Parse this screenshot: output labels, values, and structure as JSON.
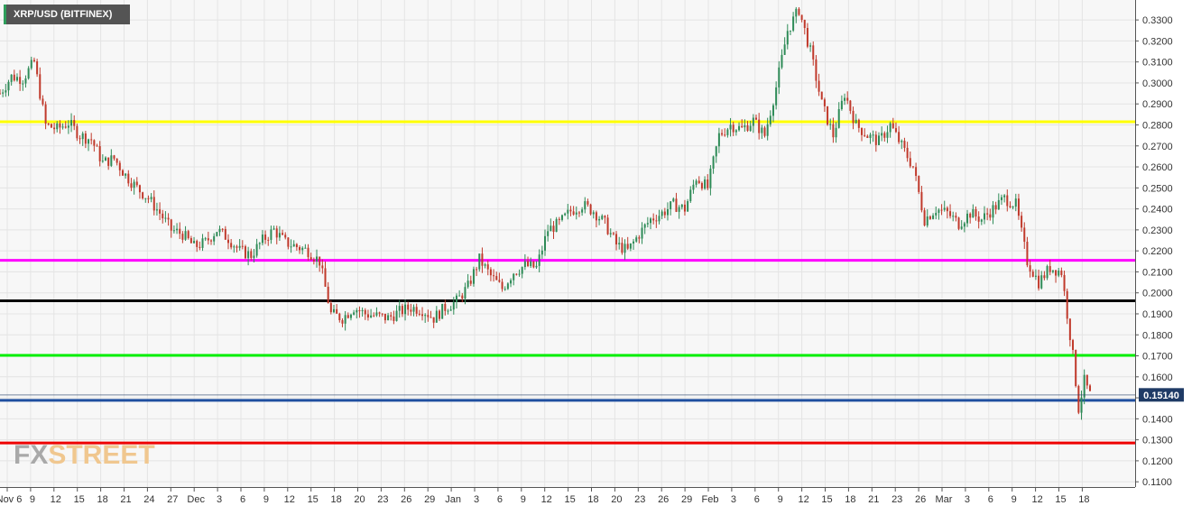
{
  "title": "XRP/USD (BITFINEX)",
  "logo": {
    "part1": "FX",
    "part2": "STREET"
  },
  "price_label": "0.15140",
  "colors": {
    "plot_bg": "#f7f7f7",
    "grid": "#e4e4e4",
    "up": "#2e8b57",
    "down": "#c0392b",
    "price_label_bg": "#1f3b66"
  },
  "chart_data": {
    "type": "candlestick",
    "title": "XRP/USD (BITFINEX)",
    "y_ticks": [
      "0.1100",
      "0.1200",
      "0.1300",
      "0.1400",
      "0.1500",
      "0.1600",
      "0.1700",
      "0.1800",
      "0.1900",
      "0.2000",
      "0.2100",
      "0.2200",
      "0.2300",
      "0.2400",
      "0.2500",
      "0.2600",
      "0.2700",
      "0.2800",
      "0.2900",
      "0.3000",
      "0.3100",
      "0.3200",
      "0.3300"
    ],
    "ylim": [
      0.1075,
      0.3395
    ],
    "x_ticks": [
      "Nov 6",
      "9",
      "12",
      "15",
      "18",
      "21",
      "24",
      "27",
      "Dec",
      "3",
      "6",
      "9",
      "12",
      "15",
      "18",
      "20",
      "23",
      "26",
      "29",
      "Jan",
      "3",
      "6",
      "9",
      "12",
      "15",
      "18",
      "20",
      "23",
      "26",
      "29",
      "Feb",
      "3",
      "6",
      "9",
      "12",
      "15",
      "18",
      "21",
      "23",
      "26",
      "Mar",
      "3",
      "6",
      "9",
      "12",
      "15",
      "18"
    ],
    "levels": [
      {
        "price": 0.2815,
        "color": "#ffff00"
      },
      {
        "price": 0.2155,
        "color": "#ff00ff"
      },
      {
        "price": 0.1962,
        "color": "#000000"
      },
      {
        "price": 0.1702,
        "color": "#00ee00"
      },
      {
        "price": 0.1488,
        "color": "#1f4fa0"
      },
      {
        "price": 0.1285,
        "color": "#ee0000"
      }
    ],
    "last_price": 0.1514,
    "series": [
      {
        "x": 0.0,
        "close": 0.295
      },
      {
        "x": 2.0,
        "close": 0.303
      },
      {
        "x": 4.0,
        "close": 0.302
      },
      {
        "x": 6.0,
        "close": 0.31
      },
      {
        "x": 8.0,
        "close": 0.28
      },
      {
        "x": 10.0,
        "close": 0.278
      },
      {
        "x": 12.0,
        "close": 0.281
      },
      {
        "x": 14.0,
        "close": 0.275
      },
      {
        "x": 16.0,
        "close": 0.273
      },
      {
        "x": 18.0,
        "close": 0.262
      },
      {
        "x": 20.0,
        "close": 0.264
      },
      {
        "x": 22.0,
        "close": 0.256
      },
      {
        "x": 24.0,
        "close": 0.25
      },
      {
        "x": 26.0,
        "close": 0.245
      },
      {
        "x": 28.0,
        "close": 0.238
      },
      {
        "x": 30.0,
        "close": 0.23
      },
      {
        "x": 32.0,
        "close": 0.228
      },
      {
        "x": 34.0,
        "close": 0.222
      },
      {
        "x": 36.0,
        "close": 0.224
      },
      {
        "x": 38.0,
        "close": 0.23
      },
      {
        "x": 40.0,
        "close": 0.226
      },
      {
        "x": 42.0,
        "close": 0.22
      },
      {
        "x": 44.0,
        "close": 0.218
      },
      {
        "x": 46.0,
        "close": 0.225
      },
      {
        "x": 48.0,
        "close": 0.23
      },
      {
        "x": 50.0,
        "close": 0.224
      },
      {
        "x": 52.0,
        "close": 0.222
      },
      {
        "x": 54.0,
        "close": 0.22
      },
      {
        "x": 56.0,
        "close": 0.215
      },
      {
        "x": 58.0,
        "close": 0.19
      },
      {
        "x": 60.0,
        "close": 0.188
      },
      {
        "x": 62.0,
        "close": 0.193
      },
      {
        "x": 64.0,
        "close": 0.19
      },
      {
        "x": 66.0,
        "close": 0.189
      },
      {
        "x": 68.0,
        "close": 0.188
      },
      {
        "x": 70.0,
        "close": 0.191
      },
      {
        "x": 72.0,
        "close": 0.193
      },
      {
        "x": 74.0,
        "close": 0.192
      },
      {
        "x": 76.0,
        "close": 0.188
      },
      {
        "x": 78.0,
        "close": 0.193
      },
      {
        "x": 80.0,
        "close": 0.196
      },
      {
        "x": 82.0,
        "close": 0.203
      },
      {
        "x": 84.0,
        "close": 0.216
      },
      {
        "x": 86.0,
        "close": 0.208
      },
      {
        "x": 88.0,
        "close": 0.202
      },
      {
        "x": 90.0,
        "close": 0.21
      },
      {
        "x": 92.0,
        "close": 0.213
      },
      {
        "x": 94.0,
        "close": 0.212
      },
      {
        "x": 96.0,
        "close": 0.23
      },
      {
        "x": 98.0,
        "close": 0.233
      },
      {
        "x": 100.0,
        "close": 0.239
      },
      {
        "x": 102.0,
        "close": 0.242
      },
      {
        "x": 104.0,
        "close": 0.239
      },
      {
        "x": 106.0,
        "close": 0.233
      },
      {
        "x": 108.0,
        "close": 0.223
      },
      {
        "x": 110.0,
        "close": 0.22
      },
      {
        "x": 112.0,
        "close": 0.228
      },
      {
        "x": 114.0,
        "close": 0.235
      },
      {
        "x": 116.0,
        "close": 0.238
      },
      {
        "x": 118.0,
        "close": 0.242
      },
      {
        "x": 120.0,
        "close": 0.24
      },
      {
        "x": 122.0,
        "close": 0.255
      },
      {
        "x": 124.0,
        "close": 0.25
      },
      {
        "x": 126.0,
        "close": 0.275
      },
      {
        "x": 128.0,
        "close": 0.28
      },
      {
        "x": 130.0,
        "close": 0.278
      },
      {
        "x": 132.0,
        "close": 0.282
      },
      {
        "x": 134.0,
        "close": 0.275
      },
      {
        "x": 136.0,
        "close": 0.298
      },
      {
        "x": 138.0,
        "close": 0.325
      },
      {
        "x": 140.0,
        "close": 0.335
      },
      {
        "x": 142.0,
        "close": 0.315
      },
      {
        "x": 144.0,
        "close": 0.29
      },
      {
        "x": 146.0,
        "close": 0.275
      },
      {
        "x": 148.0,
        "close": 0.295
      },
      {
        "x": 150.0,
        "close": 0.28
      },
      {
        "x": 152.0,
        "close": 0.275
      },
      {
        "x": 154.0,
        "close": 0.272
      },
      {
        "x": 156.0,
        "close": 0.28
      },
      {
        "x": 158.0,
        "close": 0.27
      },
      {
        "x": 160.0,
        "close": 0.26
      },
      {
        "x": 162.0,
        "close": 0.235
      },
      {
        "x": 164.0,
        "close": 0.24
      },
      {
        "x": 166.0,
        "close": 0.238
      },
      {
        "x": 168.0,
        "close": 0.233
      },
      {
        "x": 170.0,
        "close": 0.238
      },
      {
        "x": 172.0,
        "close": 0.235
      },
      {
        "x": 174.0,
        "close": 0.24
      },
      {
        "x": 176.0,
        "close": 0.245
      },
      {
        "x": 178.0,
        "close": 0.242
      },
      {
        "x": 180.0,
        "close": 0.215
      },
      {
        "x": 182.0,
        "close": 0.205
      },
      {
        "x": 184.0,
        "close": 0.212
      },
      {
        "x": 186.0,
        "close": 0.21
      },
      {
        "x": 188.0,
        "close": 0.17
      },
      {
        "x": 189.0,
        "close": 0.145
      },
      {
        "x": 190.0,
        "close": 0.158
      },
      {
        "x": 191.0,
        "close": 0.1514
      }
    ]
  }
}
